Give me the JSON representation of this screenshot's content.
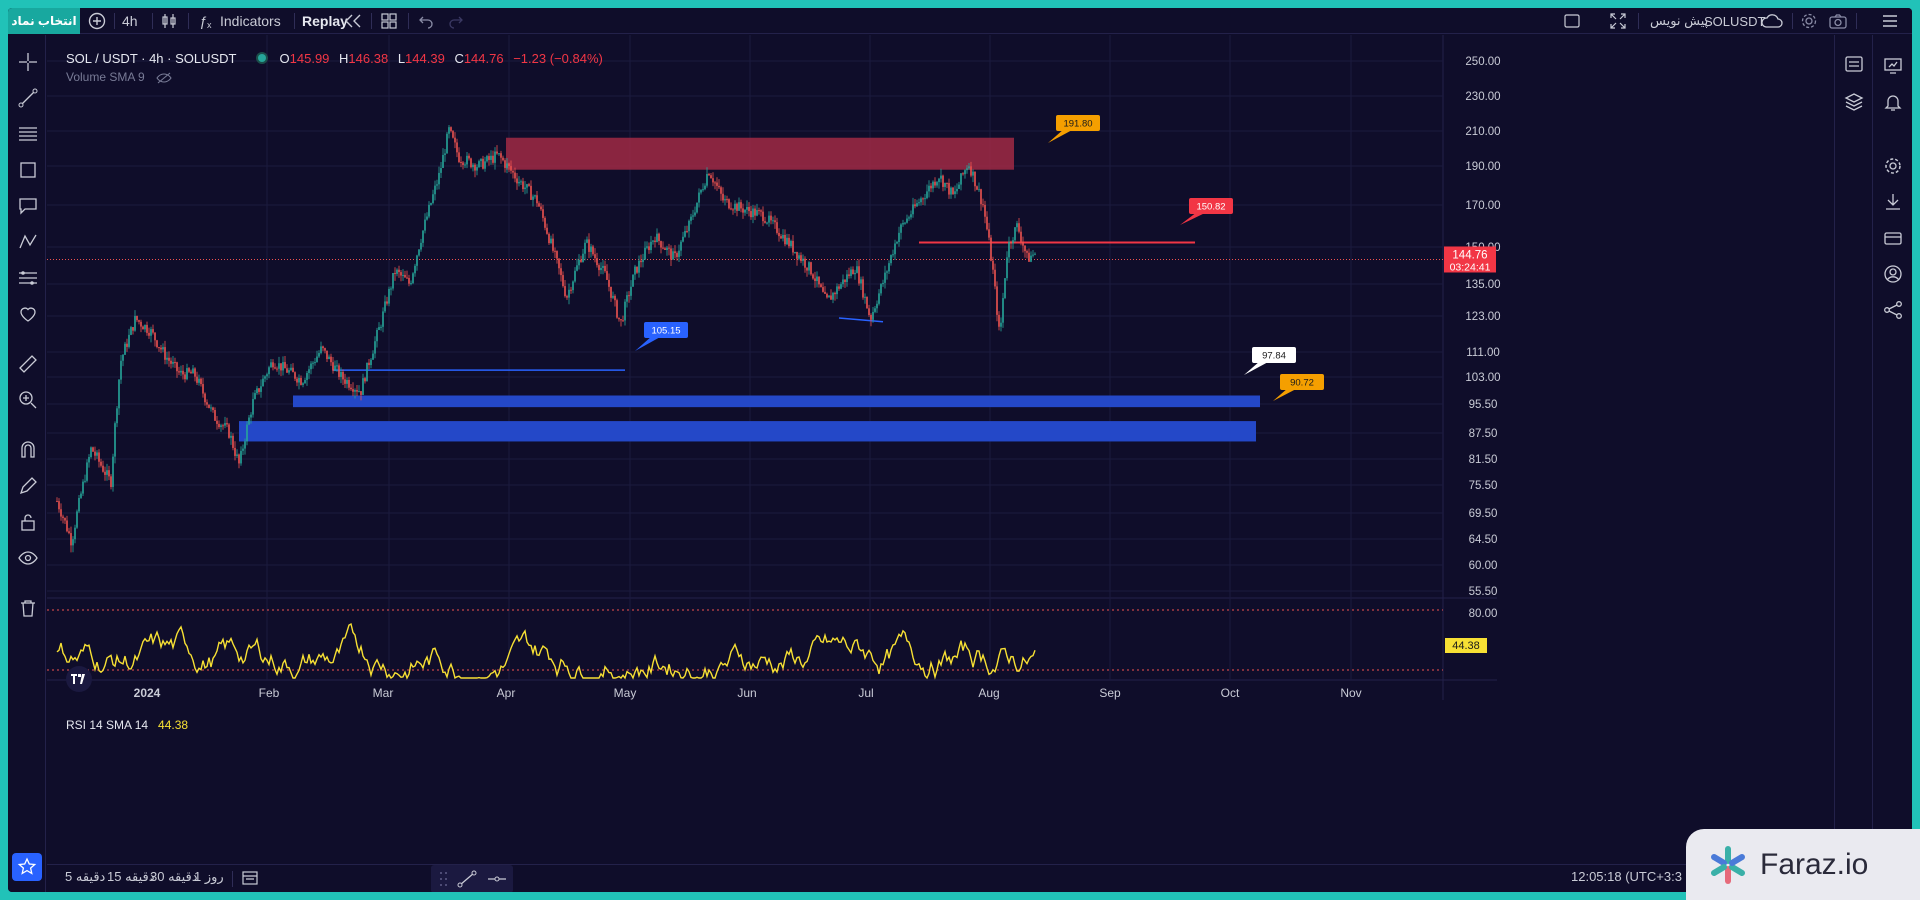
{
  "toolbar": {
    "symbol_button": "انتخاب نماد",
    "interval": "4h",
    "indicators": "Indicators",
    "replay": "Replay",
    "preview_symbol": "SOLUSDT",
    "preview_label": "پیش نویس"
  },
  "legend": {
    "title": "SOL / USDT · 4h · SOLUSDT",
    "open_label": "O",
    "open": "145.99",
    "high_label": "H",
    "high": "146.38",
    "low_label": "L",
    "low": "144.39",
    "close_label": "C",
    "close": "144.76",
    "change": "−1.23 (−0.84%)",
    "volume": "Volume SMA 9"
  },
  "price_scale": [
    "250.00",
    "230.00",
    "210.00",
    "190.00",
    "170.00",
    "150.00",
    "135.00",
    "123.00",
    "111.00",
    "103.00",
    "95.50",
    "87.50",
    "81.50",
    "75.50",
    "69.50",
    "64.50",
    "60.00",
    "55.50"
  ],
  "current_price": "144.76",
  "countdown": "03:24:41",
  "labels": {
    "l191": "191.80",
    "l150": "150.82",
    "l105": "105.15",
    "l97": "97.84",
    "l90": "90.72"
  },
  "rsi": {
    "label": "RSI 14 SMA 14",
    "value": "44.38",
    "scale_top": "80.00",
    "scale_badge": "44.38"
  },
  "time_axis": [
    "2024",
    "Feb",
    "Mar",
    "Apr",
    "May",
    "Jun",
    "Jul",
    "Aug",
    "Sep",
    "Oct",
    "Nov"
  ],
  "bottom": {
    "d5": "5 دقیقه",
    "d15": "15 دقیقه",
    "d30": "30 دقیقه",
    "r1": "1 روز",
    "clock": "12:05:18 (UTC+3:3"
  },
  "brand": "Faraz.io",
  "colors": {
    "up": "#26a69a",
    "down": "#ef5350",
    "resistance_zone": "#a02a44",
    "support_zone": "#2448c8",
    "rsi_line": "#f7e034",
    "accent": "#2962ff"
  }
}
